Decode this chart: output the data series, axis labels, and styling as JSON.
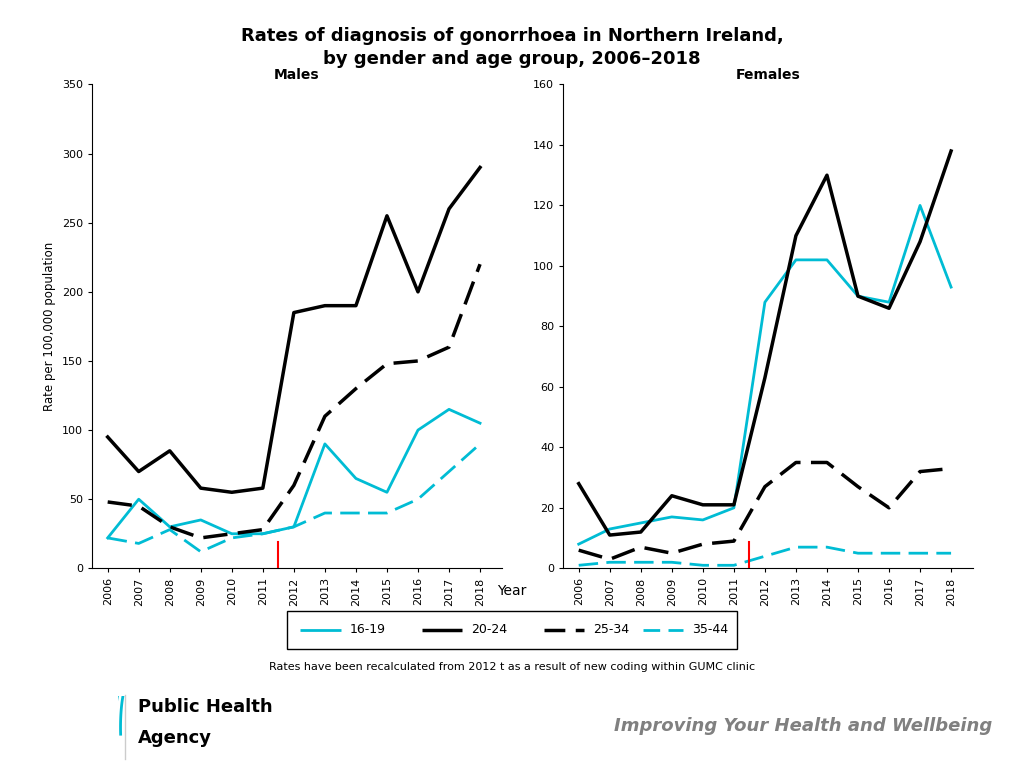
{
  "title_line1": "Rates of diagnosis of gonorrhoea in Northern Ireland,",
  "title_line2": "by gender and age group, 2006–2018",
  "title_fontsize": 13,
  "years": [
    2006,
    2007,
    2008,
    2009,
    2010,
    2011,
    2012,
    2013,
    2014,
    2015,
    2016,
    2017,
    2018
  ],
  "males": {
    "16-19": [
      22,
      50,
      30,
      35,
      25,
      25,
      30,
      90,
      65,
      55,
      100,
      115,
      105
    ],
    "20-24": [
      95,
      70,
      85,
      58,
      55,
      58,
      185,
      190,
      190,
      255,
      200,
      260,
      290
    ],
    "25-34": [
      48,
      45,
      30,
      22,
      25,
      28,
      60,
      110,
      130,
      148,
      150,
      160,
      220
    ],
    "35-44": [
      22,
      18,
      28,
      12,
      22,
      25,
      30,
      40,
      40,
      40,
      50,
      70,
      90
    ]
  },
  "females": {
    "16-19": [
      8,
      13,
      15,
      17,
      16,
      20,
      88,
      102,
      102,
      90,
      88,
      120,
      93
    ],
    "20-24": [
      28,
      11,
      12,
      24,
      21,
      21,
      63,
      110,
      130,
      90,
      86,
      108,
      138
    ],
    "25-34": [
      6,
      3,
      7,
      5,
      8,
      9,
      27,
      35,
      35,
      27,
      20,
      32,
      33
    ],
    "35-44": [
      1,
      2,
      2,
      2,
      1,
      1,
      4,
      7,
      7,
      5,
      5,
      5,
      5
    ]
  },
  "cyan": "#00bcd4",
  "black": "#000000",
  "males_ylim": [
    0,
    350
  ],
  "females_ylim": [
    0,
    160
  ],
  "males_yticks": [
    0,
    50,
    100,
    150,
    200,
    250,
    300,
    350
  ],
  "females_yticks": [
    0,
    20,
    40,
    60,
    80,
    100,
    120,
    140,
    160
  ],
  "ylabel": "Rate per 100,000 population",
  "xlabel": "Year",
  "footnote": "Rates have been recalculated from 2012 t as a result of new coding within GUMC clinic",
  "red_line_x": 2011.5,
  "hsc_color": "#00bcd4",
  "improving_text": "Improving Your Health and Wellbeing",
  "improving_color": "#808080"
}
